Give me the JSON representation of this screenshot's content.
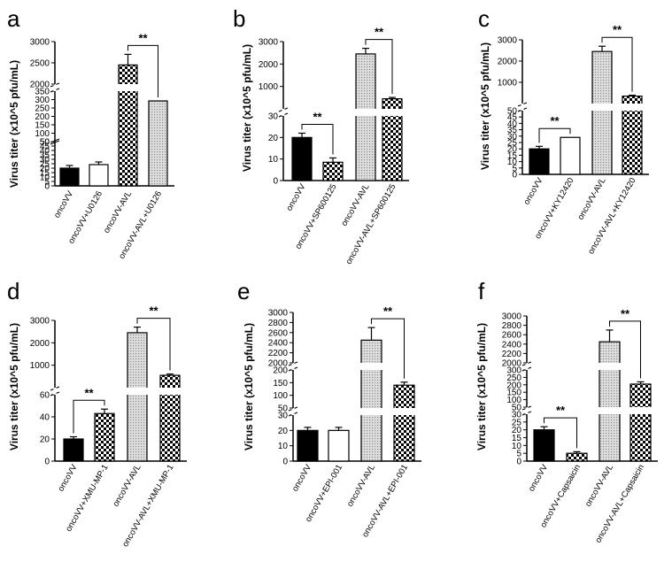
{
  "figure": {
    "panels_order": [
      "a",
      "b",
      "c",
      "d",
      "e",
      "f"
    ]
  },
  "chart_data": [
    {
      "type": "bar",
      "panel": "a",
      "ylabel": "Virus titer (x10^5 pfu/mL)",
      "categories": [
        "oncoVV",
        "oncoVV+U0126",
        "oncoVV-AVL",
        "oncoVV-AVL+U0126"
      ],
      "fills": [
        "black",
        "white",
        "checker",
        "dots"
      ],
      "values": [
        20,
        24,
        2450,
        292
      ],
      "errors": [
        3,
        3,
        250,
        0
      ],
      "significance": [
        {
          "pair": [
            2,
            3
          ],
          "label": "**"
        }
      ],
      "segments": [
        {
          "range": [
            0,
            50
          ],
          "ticks": [
            "0",
            "5",
            "10",
            "15",
            "20",
            "25",
            "30",
            "35",
            "40",
            "45",
            "50"
          ]
        },
        {
          "range": [
            50,
            350
          ],
          "ticks": [
            "50",
            "100",
            "150",
            "200",
            "250",
            "300",
            "350"
          ]
        },
        {
          "range": [
            2000,
            3000
          ],
          "ticks": [
            "2000",
            "2500",
            "3000"
          ]
        }
      ]
    },
    {
      "type": "bar",
      "panel": "b",
      "ylabel": "Virus titer (x10^5 pfu/mL)",
      "categories": [
        "oncoVV",
        "oncoVV+SP600125",
        "oncoVV-AVL",
        "oncoVV-AVL+SP600125"
      ],
      "fills": [
        "black",
        "checker",
        "dots",
        "checker"
      ],
      "values": [
        20,
        8.5,
        2450,
        450
      ],
      "errors": [
        2,
        2,
        250,
        60
      ],
      "significance": [
        {
          "pair": [
            0,
            1
          ],
          "label": "**"
        },
        {
          "pair": [
            2,
            3
          ],
          "label": "**"
        }
      ],
      "segments": [
        {
          "range": [
            0,
            30
          ],
          "ticks": [
            "0",
            "10",
            "20",
            "30"
          ]
        },
        {
          "range": [
            0,
            3000
          ],
          "ticks": [
            "1000",
            "2000",
            "3000"
          ]
        }
      ]
    },
    {
      "type": "bar",
      "panel": "c",
      "ylabel": "Virus titer (x10^5 pfu/mL)",
      "categories": [
        "oncoVV",
        "oncoVV+KY12420",
        "oncoVV-AVL",
        "oncoVV-AVL+KY12420"
      ],
      "fills": [
        "black",
        "white",
        "dots",
        "checker"
      ],
      "values": [
        20,
        29,
        2450,
        350
      ],
      "errors": [
        2,
        0,
        250,
        40
      ],
      "significance": [
        {
          "pair": [
            0,
            1
          ],
          "label": "**"
        },
        {
          "pair": [
            2,
            3
          ],
          "label": "**"
        }
      ],
      "segments": [
        {
          "range": [
            0,
            50
          ],
          "ticks": [
            "0",
            "5",
            "10",
            "15",
            "20",
            "25",
            "30",
            "35",
            "40",
            "45",
            "50"
          ]
        },
        {
          "range": [
            0,
            3000
          ],
          "ticks": [
            "1000",
            "2000",
            "3000"
          ]
        }
      ]
    },
    {
      "type": "bar",
      "panel": "d",
      "ylabel": "Virus titer (x10^5 pfu/mL)",
      "categories": [
        "oncoVV",
        "oncoVV+XMU-MP-1",
        "oncoVV-AVL",
        "oncoVV-AVL+XMU-MP-1"
      ],
      "fills": [
        "black",
        "checker",
        "dots",
        "checker"
      ],
      "values": [
        20,
        43,
        2450,
        550
      ],
      "errors": [
        2,
        4,
        250,
        60
      ],
      "significance": [
        {
          "pair": [
            0,
            1
          ],
          "label": "**"
        },
        {
          "pair": [
            2,
            3
          ],
          "label": "**"
        }
      ],
      "segments": [
        {
          "range": [
            0,
            60
          ],
          "ticks": [
            "0",
            "20",
            "40",
            "60"
          ]
        },
        {
          "range": [
            0,
            3000
          ],
          "ticks": [
            "1000",
            "2000",
            "3000"
          ]
        }
      ]
    },
    {
      "type": "bar",
      "panel": "e",
      "ylabel": "Virus titer (x10^5 pfu/mL)",
      "categories": [
        "oncoVV",
        "oncoVV+EPI-001",
        "oncoVV-AVL",
        "oncoVV-AVL+EPI-001"
      ],
      "fills": [
        "black",
        "white",
        "dots",
        "checker"
      ],
      "values": [
        20,
        20,
        2450,
        140
      ],
      "errors": [
        2,
        2,
        250,
        12
      ],
      "significance": [
        {
          "pair": [
            2,
            3
          ],
          "label": "**"
        }
      ],
      "segments": [
        {
          "range": [
            0,
            30
          ],
          "ticks": [
            "0",
            "10",
            "20",
            "30"
          ]
        },
        {
          "range": [
            50,
            200
          ],
          "ticks": [
            "50",
            "100",
            "150",
            "200"
          ]
        },
        {
          "range": [
            2000,
            3000
          ],
          "ticks": [
            "2000",
            "2200",
            "2400",
            "2600",
            "2800",
            "3000"
          ]
        }
      ]
    },
    {
      "type": "bar",
      "panel": "f",
      "ylabel": "Virus titer (x10^5 pfu/mL)",
      "categories": [
        "oncoVV",
        "oncoVV+Capsaicin",
        "oncoVV-AVL",
        "oncoVV-AVL+Capsaicin"
      ],
      "fills": [
        "black",
        "checker",
        "dots",
        "checker"
      ],
      "values": [
        20,
        5,
        2450,
        205
      ],
      "errors": [
        2,
        1,
        250,
        15
      ],
      "significance": [
        {
          "pair": [
            0,
            1
          ],
          "label": "**"
        },
        {
          "pair": [
            2,
            3
          ],
          "label": "**"
        }
      ],
      "segments": [
        {
          "range": [
            0,
            30
          ],
          "ticks": [
            "0",
            "5",
            "10",
            "15",
            "20",
            "25",
            "30"
          ]
        },
        {
          "range": [
            50,
            300
          ],
          "ticks": [
            "50",
            "100",
            "150",
            "200",
            "250",
            "300"
          ]
        },
        {
          "range": [
            2000,
            3000
          ],
          "ticks": [
            "2000",
            "2200",
            "2400",
            "2600",
            "2800",
            "3000"
          ]
        }
      ]
    }
  ]
}
